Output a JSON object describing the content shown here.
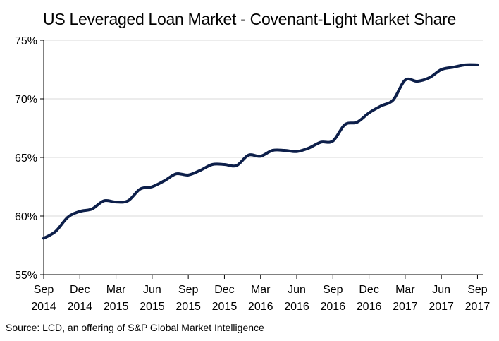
{
  "chart_data": {
    "type": "line",
    "title": "US Leveraged Loan Market - Covenant-Light Market Share",
    "xlabel": "",
    "ylabel": "",
    "ylim": [
      55,
      75
    ],
    "yticks": [
      55,
      60,
      65,
      70,
      75
    ],
    "ytick_labels": [
      "55%",
      "60%",
      "65%",
      "70%",
      "75%"
    ],
    "x_range": [
      0,
      36.5
    ],
    "xtick_positions": [
      0,
      3,
      6,
      9,
      12,
      15,
      18,
      21,
      24,
      27,
      30,
      33,
      36
    ],
    "xtick_labels": [
      {
        "month": "Sep",
        "year": "2014"
      },
      {
        "month": "Dec",
        "year": "2014"
      },
      {
        "month": "Mar",
        "year": "2015"
      },
      {
        "month": "Jun",
        "year": "2015"
      },
      {
        "month": "Sep",
        "year": "2015"
      },
      {
        "month": "Dec",
        "year": "2015"
      },
      {
        "month": "Mar",
        "year": "2016"
      },
      {
        "month": "Jun",
        "year": "2016"
      },
      {
        "month": "Sep",
        "year": "2016"
      },
      {
        "month": "Dec",
        "year": "2016"
      },
      {
        "month": "Mar",
        "year": "2017"
      },
      {
        "month": "Jun",
        "year": "2017"
      },
      {
        "month": "Sep",
        "year": "2017"
      }
    ],
    "grid": "horizontal",
    "series": [
      {
        "color": "#0d1f4a",
        "x": [
          0,
          1,
          2,
          3,
          4,
          5,
          6,
          7,
          8,
          9,
          10,
          11,
          12,
          13,
          14,
          15,
          16,
          17,
          18,
          19,
          20,
          21,
          22,
          23,
          24,
          25,
          26,
          27,
          28,
          29,
          30,
          31,
          32,
          33,
          34,
          35,
          36
        ],
        "values": [
          58.1,
          58.7,
          59.9,
          60.4,
          60.6,
          61.3,
          61.2,
          61.3,
          62.3,
          62.5,
          63.0,
          63.6,
          63.5,
          63.9,
          64.4,
          64.4,
          64.3,
          65.2,
          65.1,
          65.6,
          65.6,
          65.5,
          65.8,
          66.3,
          66.4,
          67.8,
          68.0,
          68.8,
          69.4,
          69.9,
          71.6,
          71.5,
          71.8,
          72.5,
          72.7,
          72.9,
          72.9
        ]
      }
    ]
  },
  "source": "Source: LCD, an offering of S&P Global Market Intelligence"
}
